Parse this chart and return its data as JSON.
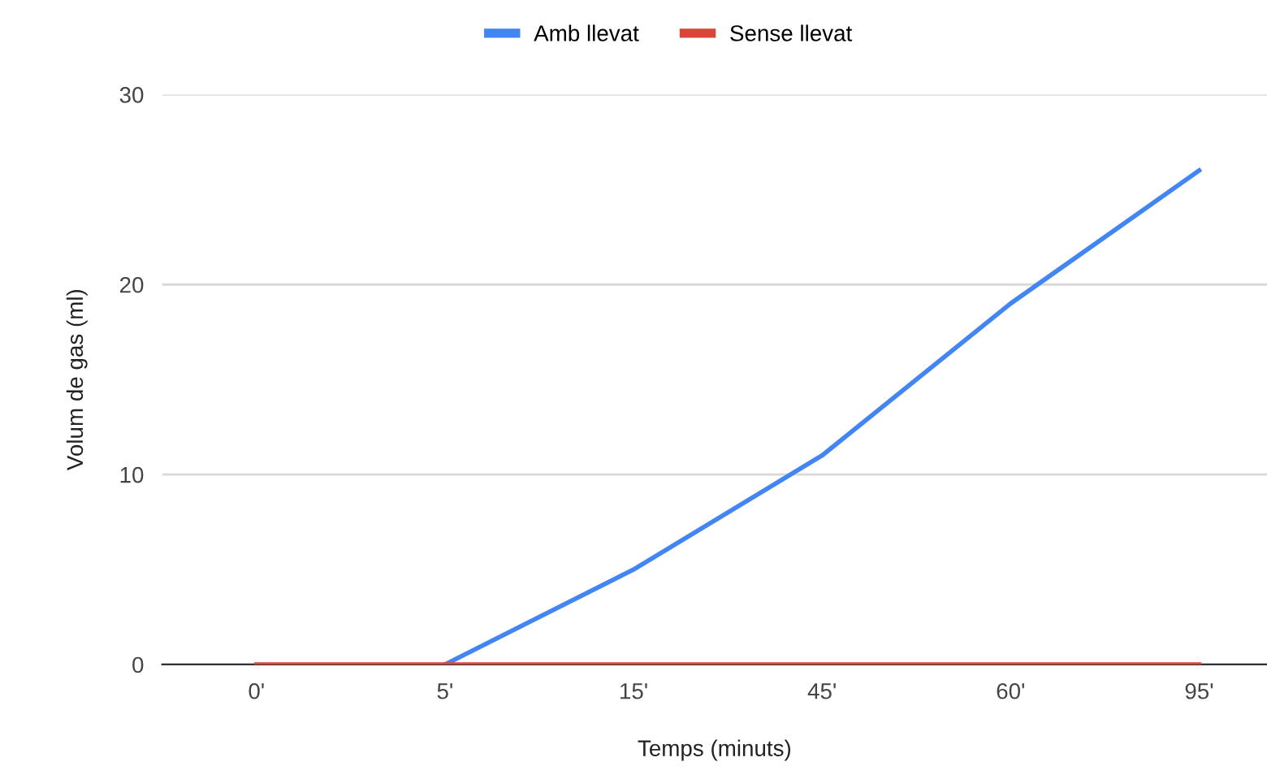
{
  "chart_data": {
    "type": "line",
    "xlabel": "Temps (minuts)",
    "ylabel": "Volum de gas (ml)",
    "categories": [
      "0'",
      "5'",
      "15'",
      "45'",
      "60'",
      "95'"
    ],
    "series": [
      {
        "name": "Amb llevat",
        "color": "#4285f4",
        "values": [
          null,
          0,
          5,
          11,
          19,
          26
        ]
      },
      {
        "name": "Sense llevat",
        "color": "#db4437",
        "values": [
          0,
          0,
          0,
          0,
          0,
          0
        ]
      }
    ],
    "ylim": [
      0,
      30
    ],
    "yticks": [
      0,
      10,
      20,
      30
    ],
    "grid": "y",
    "legend": "top",
    "marker": "none",
    "line_style": "solid"
  }
}
